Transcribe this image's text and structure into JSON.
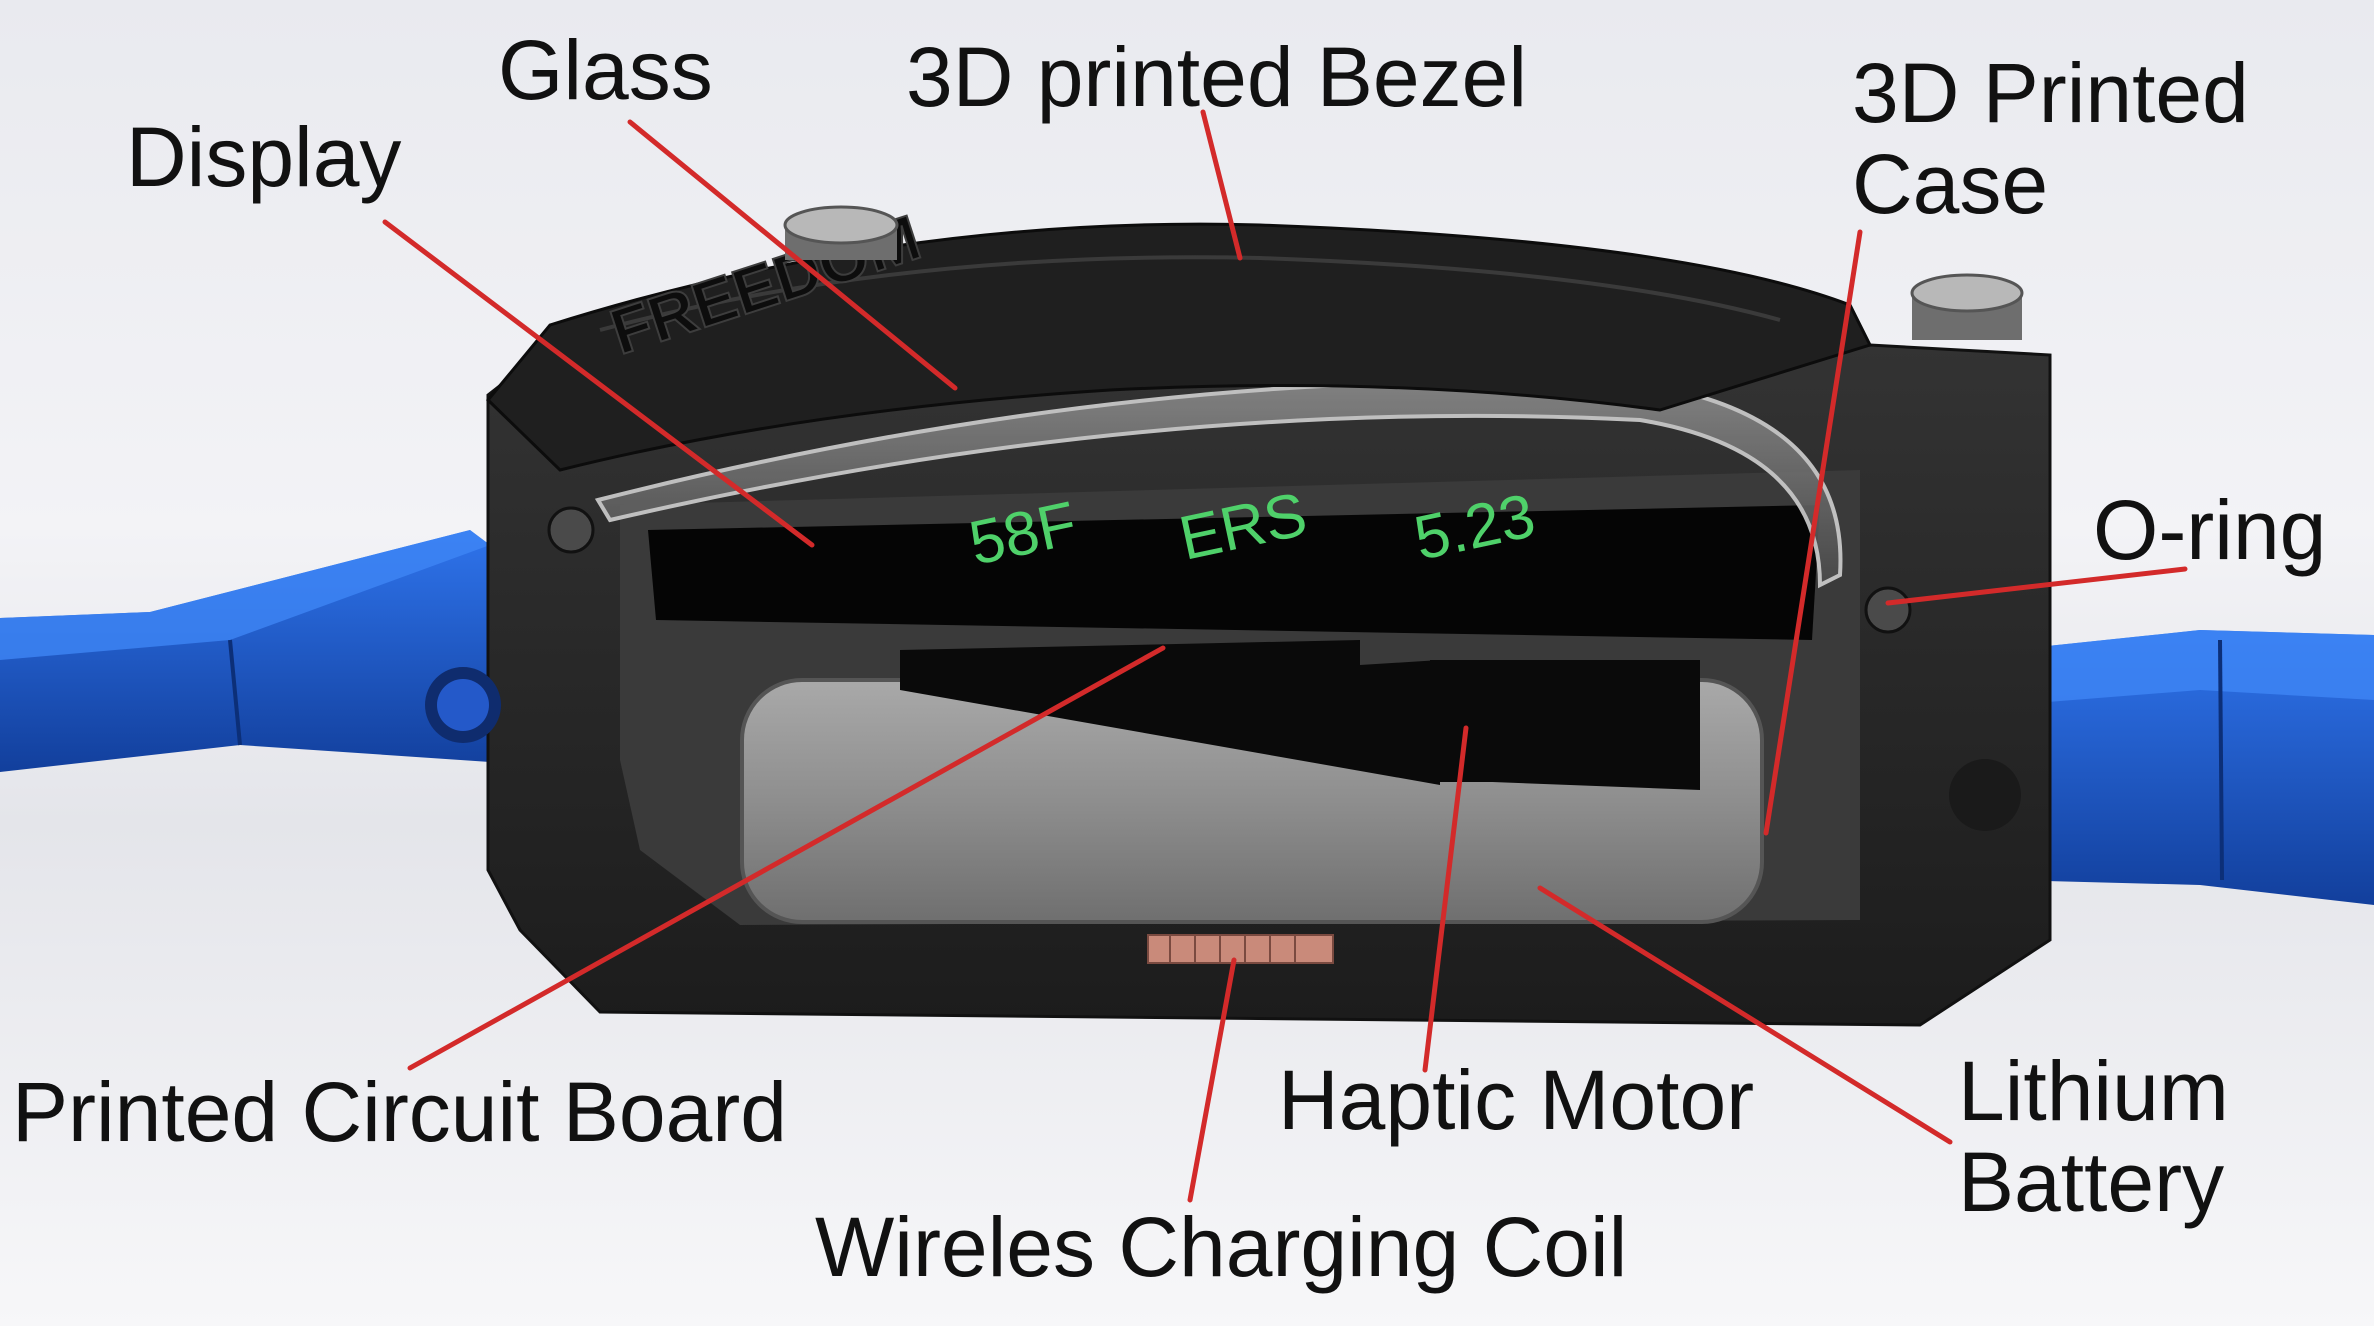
{
  "labels": {
    "glass": "Glass",
    "bezel": "3D printed Bezel",
    "display": "Display",
    "case_line1": "3D Printed",
    "case_line2": "Case",
    "oring": "O-ring",
    "pcb": "Printed Circuit Board",
    "haptic": "Haptic Motor",
    "battery_line1": "Lithium",
    "battery_line2": "Battery",
    "coil": "Wireles Charging Coil"
  },
  "model": {
    "bezel_engraving": "FREEDOM",
    "display_readouts": [
      "58F",
      "ERS",
      "5.23"
    ]
  },
  "colors": {
    "leader_line": "#d32a2a",
    "strap": "#1d5fd6",
    "case": "#262626",
    "display_text": "#4fd16a",
    "battery": "#8a8a8a",
    "coil": "#c98a7a"
  }
}
